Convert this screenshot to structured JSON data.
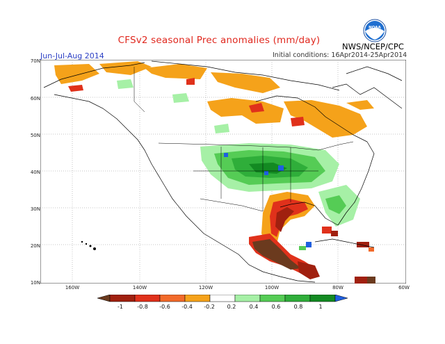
{
  "header": {
    "title": "CFSv2 seasonal Prec anomalies (mm/day)",
    "season": "Jun-Jul-Aug 2014",
    "initial_conditions": "Initial conditions: 16Apr2014-25Apr2014",
    "agency": "NWS/NCEP/CPC",
    "logo_text": "NOAA"
  },
  "map": {
    "region": "North America",
    "lat_ticks": [
      "70N",
      "60N",
      "50N",
      "40N",
      "30N",
      "20N",
      "10N"
    ],
    "lon_ticks": [
      "160W",
      "140W",
      "120W",
      "100W",
      "80W",
      "60W"
    ],
    "anomaly_regions": [
      {
        "area": "Alaska / northern Canada coast",
        "category": "dry",
        "level": -0.4
      },
      {
        "area": "Central Canada / Hudson Bay",
        "category": "dry",
        "level": -0.4
      },
      {
        "area": "Central United States",
        "category": "wet",
        "level": 0.6
      },
      {
        "area": "Gulf coast / Texas",
        "category": "dry",
        "level": -0.8
      },
      {
        "area": "Mexico / Central America",
        "category": "dry",
        "level": -1.0
      },
      {
        "area": "Southeast United States",
        "category": "wet",
        "level": 0.4
      }
    ]
  },
  "colorbar": {
    "labels": [
      "-1",
      "-0.8",
      "-0.6",
      "-0.4",
      "-0.2",
      "0.2",
      "0.4",
      "0.6",
      "0.8",
      "1"
    ],
    "colors": [
      "#6b3a1e",
      "#a0200f",
      "#e0311b",
      "#f26a2a",
      "#f5a21a",
      "#ffffff",
      "#a6f0a6",
      "#55cc55",
      "#2fae3a",
      "#138a22",
      "#1f5fe0"
    ]
  }
}
